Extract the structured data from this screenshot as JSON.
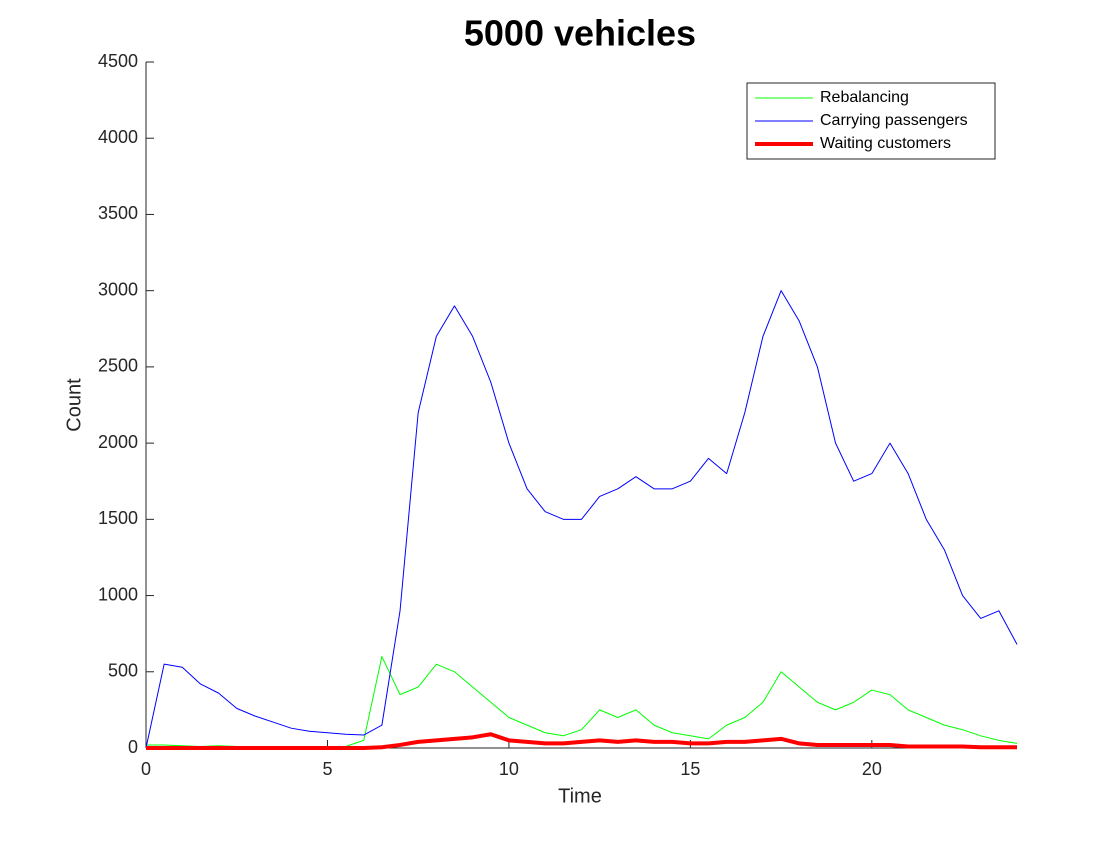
{
  "chart_data": {
    "type": "line",
    "title": "5000 vehicles",
    "x_label": "Time",
    "y_label": "Count",
    "x": [
      0,
      0.5,
      1,
      1.5,
      2,
      2.5,
      3,
      3.5,
      4,
      4.5,
      5,
      5.5,
      6,
      6.5,
      7,
      7.5,
      8,
      8.5,
      9,
      9.5,
      10,
      10.5,
      11,
      11.5,
      12,
      12.5,
      13,
      13.5,
      14,
      14.5,
      15,
      15.5,
      16,
      16.5,
      17,
      17.5,
      18,
      18.5,
      19,
      19.5,
      20,
      20.5,
      21,
      21.5,
      22,
      22.5,
      23,
      23.5,
      24
    ],
    "series": [
      {
        "name": "Rebalancing",
        "color": "#00ff00",
        "width": 1,
        "values": [
          20,
          20,
          15,
          10,
          15,
          10,
          10,
          10,
          5,
          5,
          5,
          10,
          50,
          600,
          350,
          400,
          550,
          500,
          400,
          300,
          200,
          150,
          100,
          80,
          120,
          250,
          200,
          250,
          150,
          100,
          80,
          60,
          150,
          200,
          300,
          500,
          400,
          300,
          250,
          300,
          380,
          350,
          250,
          200,
          150,
          120,
          80,
          50,
          30
        ]
      },
      {
        "name": "Carrying passengers",
        "color": "#0000ff",
        "width": 1,
        "values": [
          0,
          550,
          530,
          420,
          360,
          260,
          210,
          170,
          130,
          110,
          100,
          90,
          85,
          150,
          900,
          2200,
          2700,
          2900,
          2700,
          2400,
          2000,
          1700,
          1550,
          1500,
          1500,
          1650,
          1700,
          1780,
          1700,
          1700,
          1750,
          1900,
          1800,
          2200,
          2700,
          3000,
          2800,
          2500,
          2000,
          1750,
          1800,
          2000,
          1800,
          1500,
          1300,
          1000,
          850,
          900,
          680
        ]
      },
      {
        "name": "Waiting customers",
        "color": "#ff0000",
        "width": 4,
        "values": [
          0,
          0,
          0,
          0,
          0,
          0,
          0,
          0,
          0,
          0,
          0,
          0,
          0,
          5,
          20,
          40,
          50,
          60,
          70,
          90,
          50,
          40,
          30,
          30,
          40,
          50,
          40,
          50,
          40,
          40,
          30,
          30,
          40,
          40,
          50,
          60,
          30,
          20,
          20,
          20,
          20,
          20,
          10,
          10,
          10,
          10,
          5,
          5,
          5
        ]
      }
    ],
    "xlim": [
      0,
      24
    ],
    "xticks": [
      0,
      5,
      10,
      15,
      20
    ],
    "ylim": [
      0,
      4500
    ],
    "yticks": [
      0,
      500,
      1000,
      1500,
      2000,
      2500,
      3000,
      3500,
      4000,
      4500
    ],
    "legend": "top-right"
  }
}
